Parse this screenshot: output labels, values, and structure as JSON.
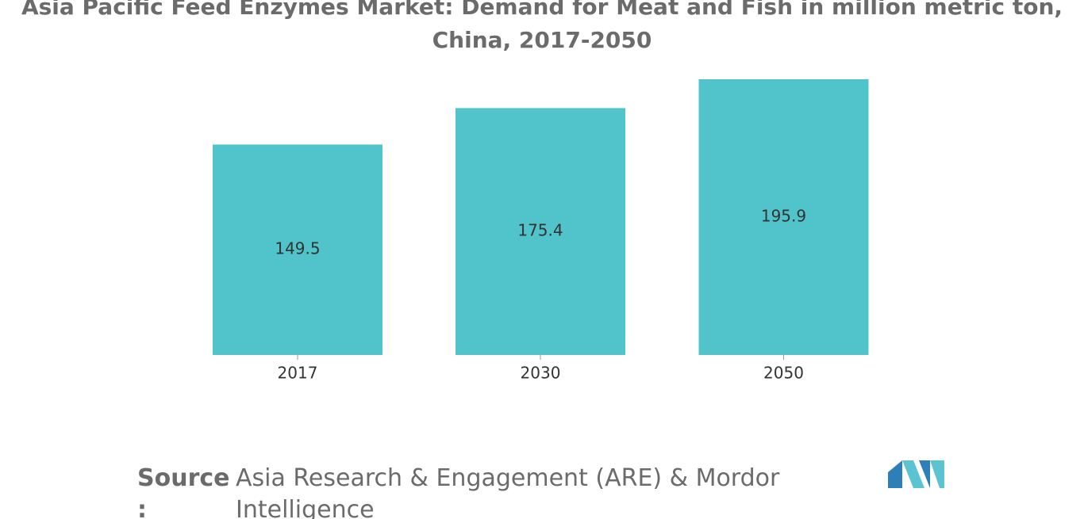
{
  "chart_data": {
    "type": "bar",
    "title": "Asia Pacific Feed Enzymes Market: Demand for Meat and Fish in million metric ton, China, 2017-2050",
    "categories": [
      "2017",
      "2030",
      "2050"
    ],
    "values": [
      149.5,
      175.4,
      195.9
    ],
    "color": "#50c4ca",
    "source_label": "Source :",
    "source": "Asia Research & Engagement (ARE) & Mordor Intelligence"
  }
}
